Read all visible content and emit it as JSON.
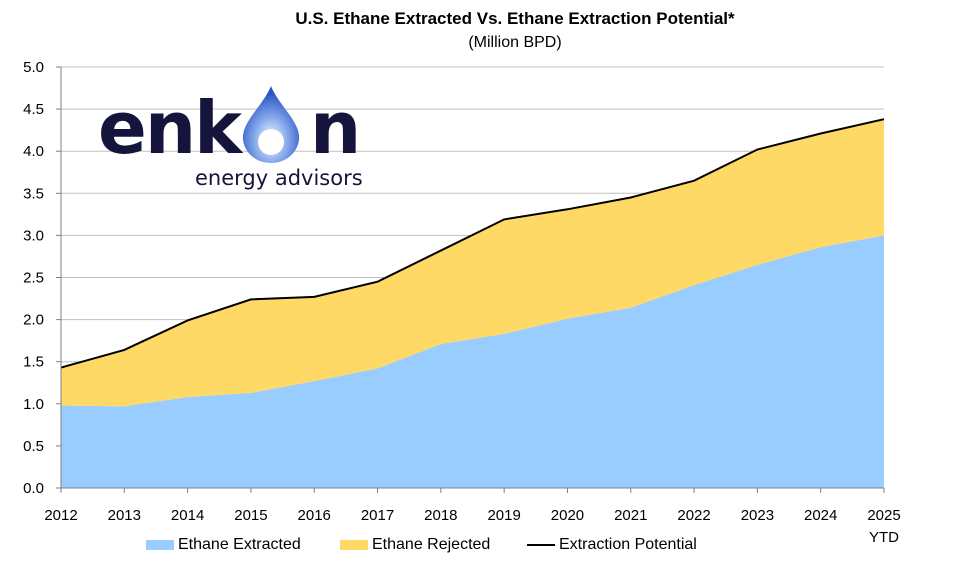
{
  "chart_data": {
    "type": "area",
    "title": "U.S. Ethane Extracted Vs. Ethane Extraction Potential*",
    "subtitle": "(Million BPD)",
    "xlabel": "",
    "ylabel": "",
    "ylim": [
      0,
      5.0
    ],
    "yticks": [
      "0.0",
      "0.5",
      "1.0",
      "1.5",
      "2.0",
      "2.5",
      "3.0",
      "3.5",
      "4.0",
      "4.5",
      "5.0"
    ],
    "categories": [
      "2012",
      "2013",
      "2014",
      "2015",
      "2016",
      "2017",
      "2018",
      "2019",
      "2020",
      "2021",
      "2022",
      "2023",
      "2024",
      "2025"
    ],
    "category_sublabels": {
      "2025": "YTD"
    },
    "stacked": true,
    "grid": "horizontal",
    "legend_position": "bottom",
    "series": [
      {
        "name": "Ethane Extracted",
        "kind": "area",
        "color": "#99CCFF",
        "values": [
          0.98,
          0.97,
          1.08,
          1.13,
          1.27,
          1.42,
          1.71,
          1.83,
          2.01,
          2.14,
          2.41,
          2.65,
          2.86,
          3.0
        ]
      },
      {
        "name": "Ethane Rejected",
        "kind": "area",
        "color": "#FFD966",
        "values": [
          0.45,
          0.67,
          0.91,
          1.11,
          1.0,
          1.03,
          1.11,
          1.36,
          1.3,
          1.31,
          1.24,
          1.37,
          1.35,
          1.38
        ]
      },
      {
        "name": "Extraction Potential",
        "kind": "line",
        "color": "#000000",
        "values": [
          1.43,
          1.64,
          1.99,
          2.24,
          2.27,
          2.45,
          2.82,
          3.19,
          3.31,
          3.45,
          3.65,
          4.02,
          4.21,
          4.38
        ]
      }
    ]
  },
  "logo": {
    "wordmark_left": "enk",
    "wordmark_right": "n",
    "tagline": "energy advisors",
    "brand_color": "#14143C",
    "drop_color": "#3D6FD1"
  }
}
